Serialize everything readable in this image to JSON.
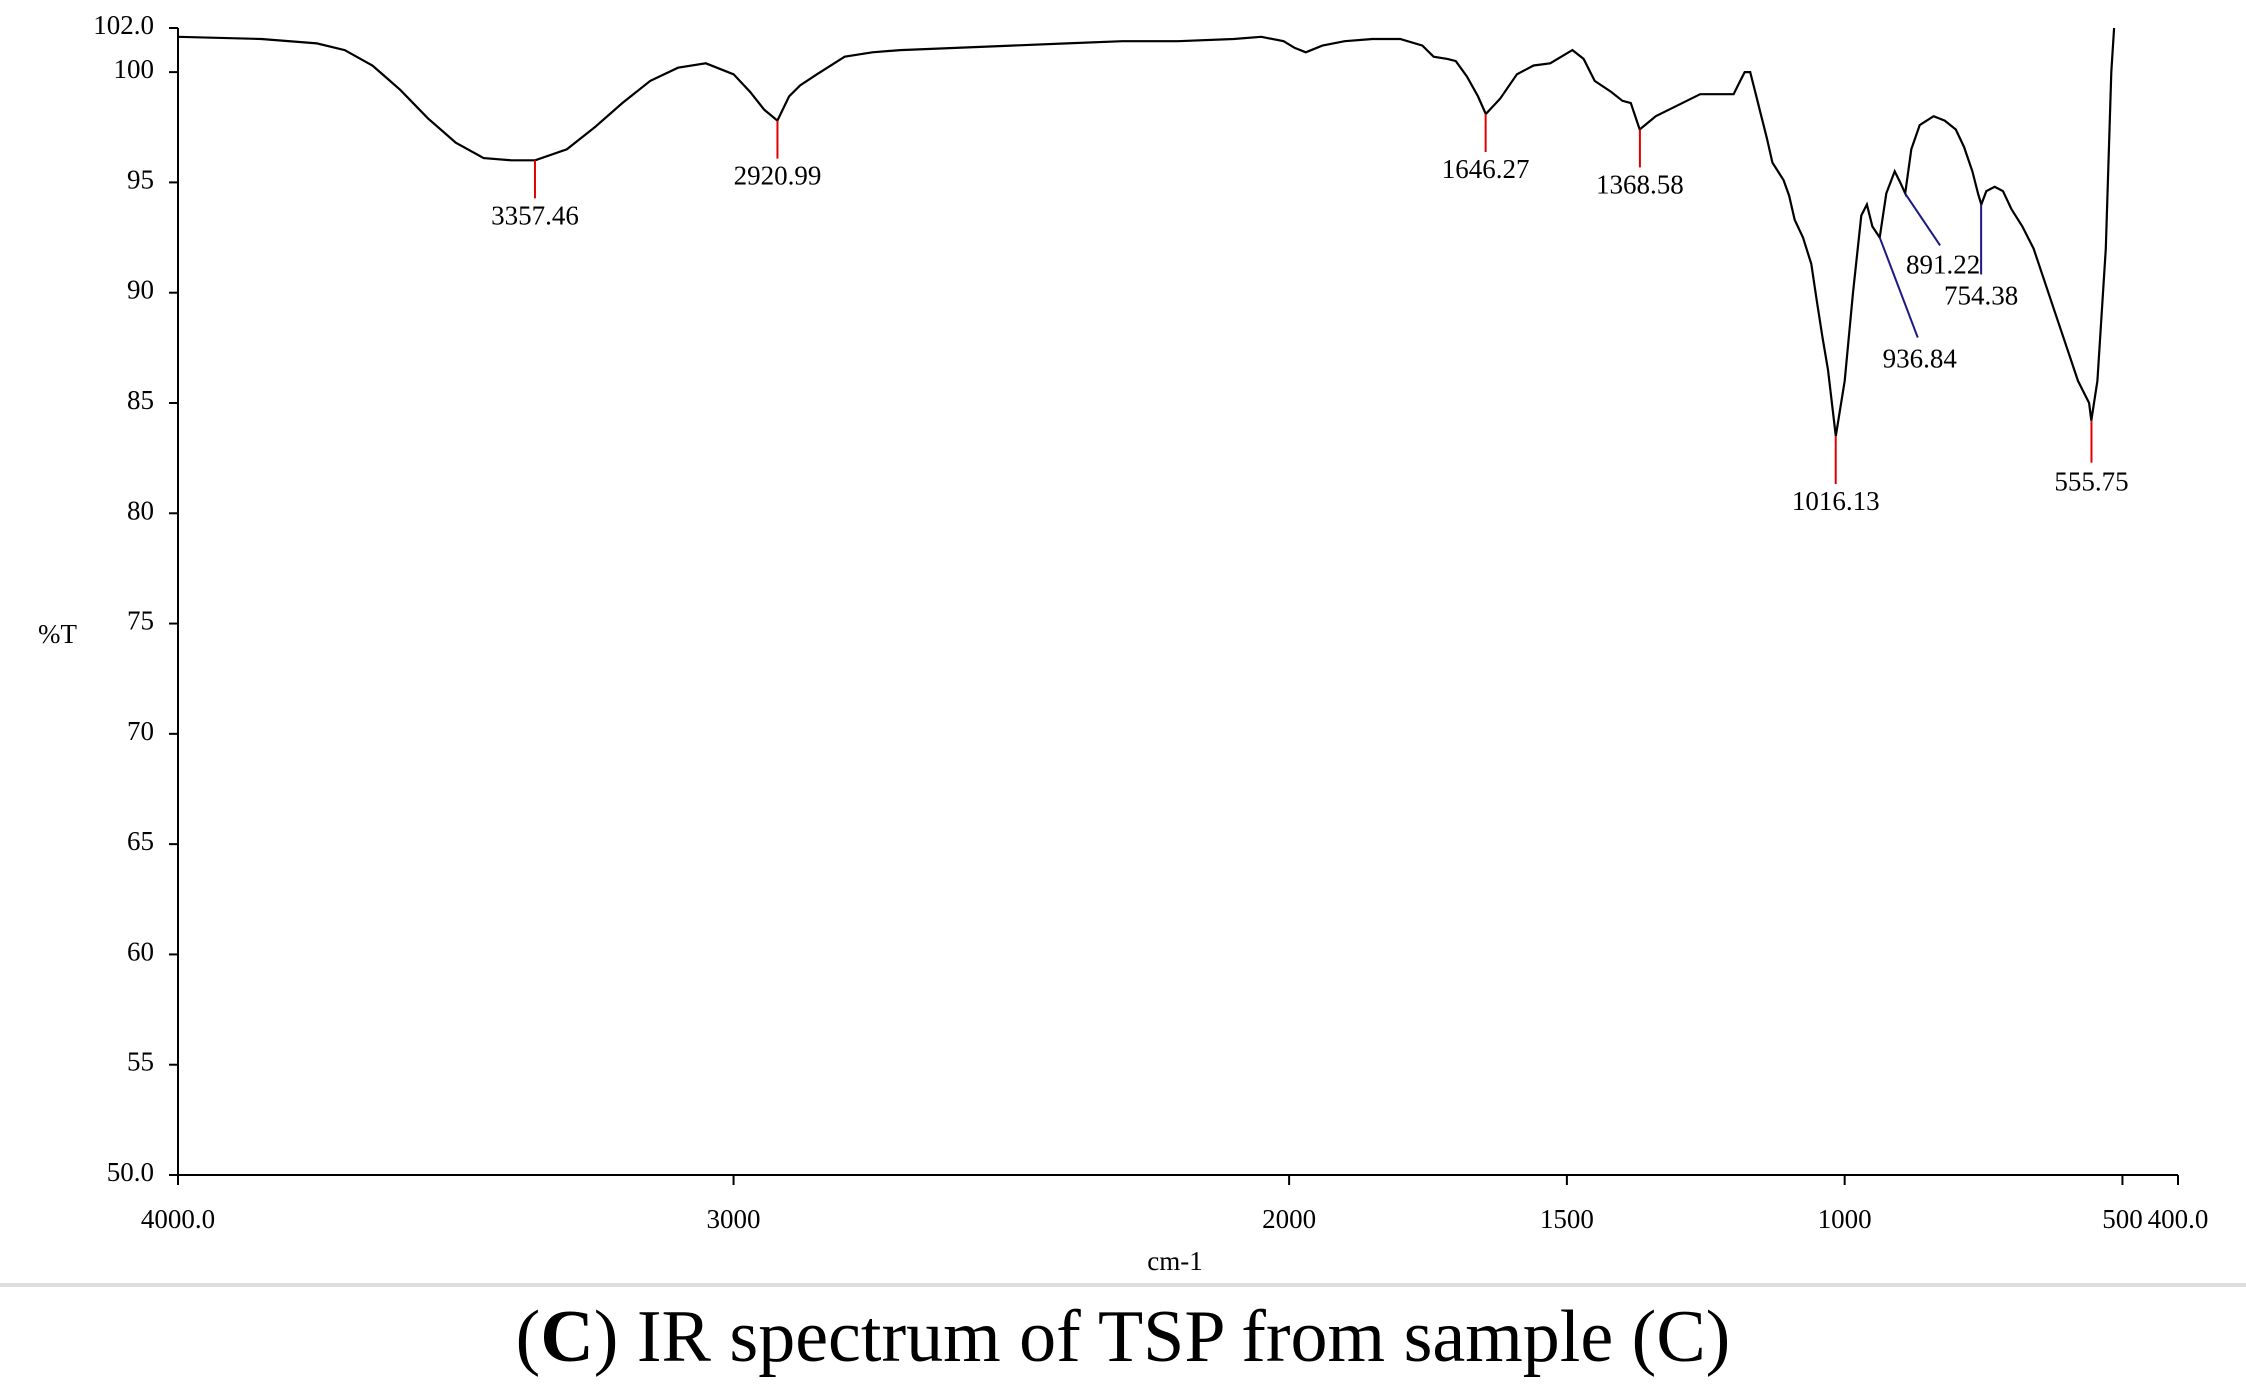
{
  "caption": {
    "open": "(",
    "letter": "C",
    "rest": ") IR spectrum of TSP from sample (C)"
  },
  "colors": {
    "spectrum": "#000000",
    "peak_marker_red": "#e00000",
    "peak_marker_blue": "#1a1a80",
    "axis": "#000000"
  },
  "chart_data": {
    "type": "line",
    "title": "",
    "xlabel": "cm-1",
    "ylabel": "%T",
    "xlim": [
      4000.0,
      400.0
    ],
    "ylim": [
      50.0,
      102.0
    ],
    "x_reversed": true,
    "grid": false,
    "x_ticks": [
      {
        "value": 4000,
        "label": "4000.0"
      },
      {
        "value": 3000,
        "label": "3000"
      },
      {
        "value": 2000,
        "label": "2000"
      },
      {
        "value": 1500,
        "label": "1500"
      },
      {
        "value": 1000,
        "label": "1000"
      },
      {
        "value": 500,
        "label": "500"
      },
      {
        "value": 400,
        "label": "400.0"
      }
    ],
    "y_ticks": [
      {
        "value": 102,
        "label": "102.0"
      },
      {
        "value": 100,
        "label": "100"
      },
      {
        "value": 95,
        "label": "95"
      },
      {
        "value": 90,
        "label": "90"
      },
      {
        "value": 85,
        "label": "85"
      },
      {
        "value": 80,
        "label": "80"
      },
      {
        "value": 75,
        "label": "75"
      },
      {
        "value": 70,
        "label": "70"
      },
      {
        "value": 65,
        "label": "65"
      },
      {
        "value": 60,
        "label": "60"
      },
      {
        "value": 55,
        "label": "55"
      },
      {
        "value": 50,
        "label": "50.0"
      }
    ],
    "series": [
      {
        "x": [
          4000,
          3850,
          3750,
          3700,
          3650,
          3600,
          3550,
          3500,
          3450,
          3400,
          3357,
          3300,
          3250,
          3200,
          3150,
          3100,
          3050,
          3000,
          2970,
          2945,
          2921,
          2900,
          2880,
          2850,
          2800,
          2750,
          2700,
          2600,
          2500,
          2400,
          2300,
          2200,
          2100,
          2050,
          2010,
          1990,
          1970,
          1940,
          1900,
          1850,
          1800,
          1760,
          1740,
          1715,
          1700,
          1680,
          1660,
          1646,
          1620,
          1590,
          1560,
          1530,
          1510,
          1490,
          1470,
          1450,
          1420,
          1400,
          1385,
          1369,
          1340,
          1300,
          1260,
          1230,
          1200,
          1190,
          1180,
          1170,
          1160,
          1150,
          1140,
          1130,
          1120,
          1110,
          1100,
          1090,
          1075,
          1060,
          1050,
          1040,
          1030,
          1016,
          1000,
          985,
          970,
          960,
          950,
          937,
          925,
          910,
          900,
          891,
          880,
          865,
          840,
          820,
          800,
          785,
          770,
          760,
          754,
          745,
          730,
          715,
          700,
          680,
          660,
          640,
          620,
          600,
          580,
          560,
          556,
          545,
          530,
          520,
          515
        ],
        "y": [
          101.6,
          101.5,
          101.3,
          101.0,
          100.3,
          99.2,
          97.9,
          96.8,
          96.1,
          96.0,
          96.0,
          96.5,
          97.5,
          98.6,
          99.6,
          100.2,
          100.4,
          99.9,
          99.1,
          98.3,
          97.8,
          98.9,
          99.4,
          99.9,
          100.7,
          100.9,
          101.0,
          101.1,
          101.2,
          101.3,
          101.4,
          101.4,
          101.5,
          101.6,
          101.4,
          101.1,
          100.9,
          101.2,
          101.4,
          101.5,
          101.5,
          101.2,
          100.7,
          100.6,
          100.5,
          99.8,
          98.9,
          98.1,
          98.8,
          99.9,
          100.3,
          100.4,
          100.7,
          101.0,
          100.6,
          99.6,
          99.1,
          98.7,
          98.6,
          97.4,
          98.0,
          98.5,
          99.0,
          99.0,
          99.0,
          99.5,
          100.0,
          100.0,
          99.0,
          98.0,
          97.0,
          95.9,
          95.5,
          95.1,
          94.4,
          93.3,
          92.5,
          91.3,
          89.6,
          88.0,
          86.5,
          83.5,
          86.0,
          90.0,
          93.5,
          94.0,
          93.0,
          92.5,
          94.5,
          95.5,
          95.0,
          94.5,
          96.5,
          97.6,
          98.0,
          97.8,
          97.4,
          96.6,
          95.5,
          94.5,
          94.0,
          94.6,
          94.8,
          94.6,
          93.8,
          93.0,
          92.0,
          90.5,
          89.0,
          87.5,
          86.0,
          85.0,
          84.2,
          86.0,
          92.0,
          100.0,
          102.0
        ]
      }
    ],
    "peaks": [
      {
        "x": 3357.46,
        "y": 96.0,
        "label": "3357.46",
        "color": "red"
      },
      {
        "x": 2920.99,
        "y": 97.8,
        "label": "2920.99",
        "color": "red"
      },
      {
        "x": 1646.27,
        "y": 98.1,
        "label": "1646.27",
        "color": "red"
      },
      {
        "x": 1368.58,
        "y": 97.4,
        "label": "1368.58",
        "color": "red"
      },
      {
        "x": 1016.13,
        "y": 83.5,
        "label": "1016.13",
        "color": "red"
      },
      {
        "x": 936.84,
        "y": 92.5,
        "label": "936.84",
        "color": "blue"
      },
      {
        "x": 891.22,
        "y": 94.5,
        "label": "891.22",
        "color": "blue"
      },
      {
        "x": 754.38,
        "y": 94.0,
        "label": "754.38",
        "color": "blue"
      },
      {
        "x": 555.75,
        "y": 84.2,
        "label": "555.75",
        "color": "red"
      }
    ]
  }
}
